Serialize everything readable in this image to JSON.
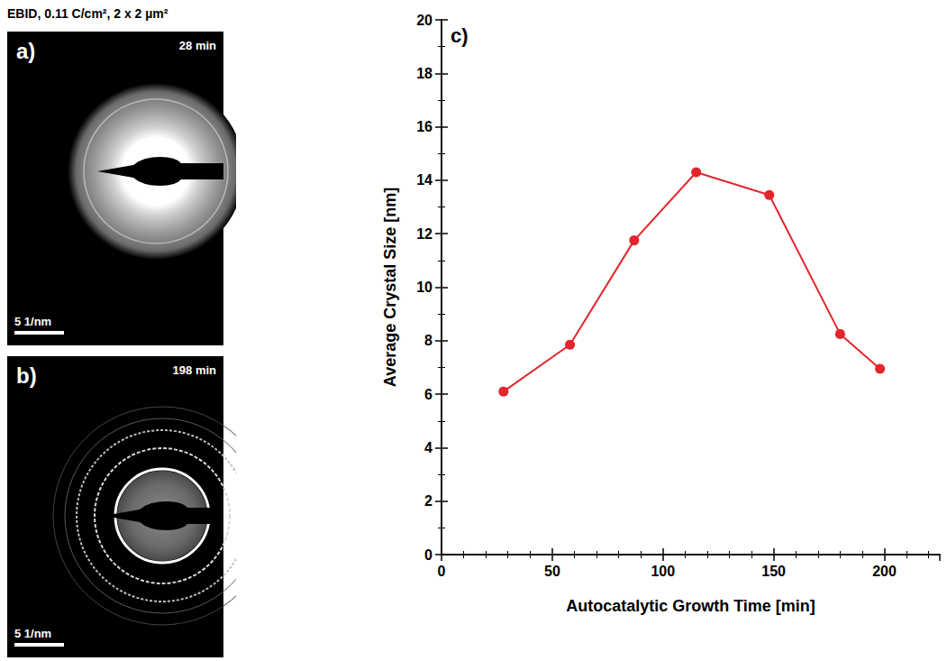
{
  "title": "EBID, 0.11 C/cm², 2 x 2 µm²",
  "panels": [
    {
      "label": "a)",
      "time": "28 min",
      "scale_bar": "5 1/nm"
    },
    {
      "label": "b)",
      "time": "198 min",
      "scale_bar": "5 1/nm"
    }
  ],
  "chart_data": {
    "type": "line",
    "label": "c)",
    "x_label": "Autocatalytic Growth Time [min]",
    "y_label": "Average Crystal Size [nm]",
    "x": [
      28,
      58,
      87,
      115,
      148,
      180,
      198
    ],
    "values": [
      6.1,
      7.85,
      11.75,
      14.3,
      13.45,
      8.25,
      6.95
    ],
    "color": "#e3262b",
    "marker": "circle",
    "xlim": [
      0,
      225
    ],
    "xticks": [
      0,
      50,
      100,
      150,
      200
    ],
    "ylim": [
      0,
      20
    ],
    "yticks": [
      0,
      2,
      4,
      6,
      8,
      10,
      12,
      14,
      16,
      18,
      20
    ],
    "grid": false
  }
}
